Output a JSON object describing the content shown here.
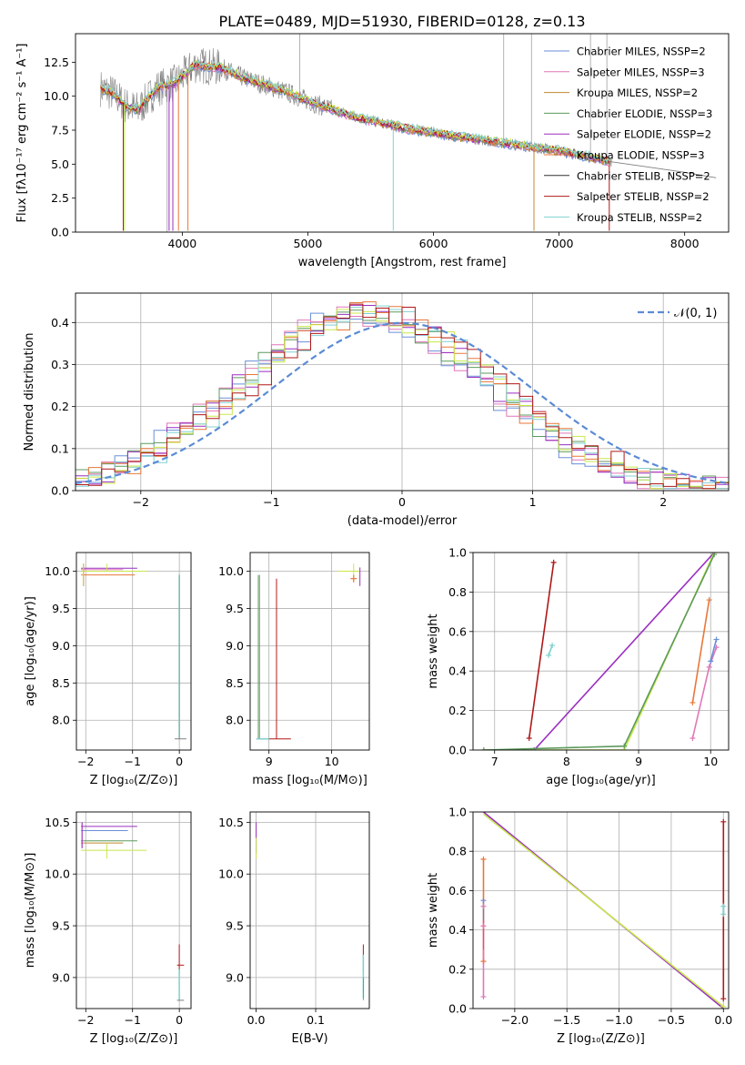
{
  "figure_title": "PLATE=0489, MJD=51930, FIBERID=0128, z=0.13",
  "colors": {
    "c0": "#6a8fd8",
    "c1": "#e077b8",
    "c2": "#c08a2e",
    "c3": "#5c9a5c",
    "c4": "#9a2fc0",
    "c5": "#e8783a",
    "c6": "#303030",
    "c7": "#b01818",
    "c8": "#80d0d0",
    "data": "#808080",
    "gauss": "#5b8bd5",
    "lime": "#c8e84a"
  },
  "chart_data": [
    {
      "id": "spectrum",
      "type": "line",
      "xlabel": "wavelength [Angstrom, rest frame]",
      "ylabel": "Flux [fλ10⁻¹⁷ erg cm⁻² s⁻¹ A⁻¹]",
      "xlim": [
        3150,
        8350
      ],
      "ylim": [
        0,
        14.6
      ],
      "xticks": [
        "4000",
        "5000",
        "6000",
        "7000",
        "8000"
      ],
      "yticks": [
        "0.0",
        "2.5",
        "5.0",
        "7.5",
        "10.0",
        "12.5"
      ],
      "grid": false,
      "legend_position": "upper right",
      "series": [
        {
          "name": "Chabrier MILES, N_SSP=2"
        },
        {
          "name": "Salpeter MILES, N_SSP=3"
        },
        {
          "name": "Kroupa MILES, N_SSP=2"
        },
        {
          "name": "Chabrier ELODIE, N_SSP=3"
        },
        {
          "name": "Salpeter ELODIE, N_SSP=2"
        },
        {
          "name": "Kroupa ELODIE, N_SSP=3"
        },
        {
          "name": "Chabrier STELIB, N_SSP=2"
        },
        {
          "name": "Salpeter STELIB, N_SSP=2"
        },
        {
          "name": "Kroupa STELIB, N_SSP=2"
        }
      ],
      "model_continuum": [
        [
          3350,
          10.6
        ],
        [
          3450,
          10.2
        ],
        [
          3550,
          9.3
        ],
        [
          3650,
          9.0
        ],
        [
          3800,
          10.6
        ],
        [
          3950,
          11.0
        ],
        [
          4100,
          12.3
        ],
        [
          4300,
          12.1
        ],
        [
          4500,
          11.3
        ],
        [
          4800,
          10.4
        ],
        [
          5100,
          9.3
        ],
        [
          5400,
          8.4
        ],
        [
          5800,
          7.6
        ],
        [
          6200,
          7.0
        ],
        [
          6600,
          6.5
        ],
        [
          7000,
          6.0
        ],
        [
          7400,
          5.2
        ]
      ],
      "extended_continuum": [
        [
          7400,
          5.2
        ],
        [
          7700,
          4.8
        ],
        [
          8000,
          4.4
        ],
        [
          8250,
          4.0
        ]
      ]
    },
    {
      "id": "residuals",
      "type": "step",
      "xlabel": "(data-model)/error",
      "ylabel": "Normed distribution",
      "xlim": [
        -2.5,
        2.5
      ],
      "ylim": [
        0,
        0.47
      ],
      "xticks": [
        "−2",
        "−1",
        "0",
        "1",
        "2"
      ],
      "yticks": [
        "0.0",
        "0.1",
        "0.2",
        "0.3",
        "0.4"
      ],
      "grid": true,
      "legend_position": "upper right",
      "gauss_label": "𝒩(0, 1)"
    },
    {
      "id": "age-vs-Z",
      "type": "errorbar",
      "xlabel": "Z [log₁₀(Z/Z⊙)]",
      "ylabel": "age  [log₁₀(age/yr)]",
      "xlim": [
        -2.2,
        0.25
      ],
      "ylim": [
        7.6,
        10.25
      ],
      "xticks": [
        "−2",
        "−1",
        "0"
      ],
      "yticks": [
        "8.0",
        "8.5",
        "9.0",
        "9.5",
        "10.0"
      ],
      "grid": true
    },
    {
      "id": "age-vs-mass",
      "type": "errorbar",
      "xlabel": "mass [log₁₀(M/M⊙)]",
      "xlim": [
        8.7,
        10.6
      ],
      "ylim": [
        7.6,
        10.25
      ],
      "xticks": [
        "9",
        "10"
      ],
      "yticks": [
        "8.0",
        "8.5",
        "9.0",
        "9.5",
        "10.0"
      ],
      "grid": true
    },
    {
      "id": "weight-vs-age",
      "type": "line",
      "xlabel": "age  [log₁₀(age/yr)]",
      "ylabel": "mass weight",
      "xlim": [
        6.7,
        10.25
      ],
      "ylim": [
        0,
        1.0
      ],
      "xticks": [
        "7",
        "8",
        "9",
        "10"
      ],
      "yticks": [
        "0.0",
        "0.2",
        "0.4",
        "0.6",
        "0.8",
        "1.0"
      ],
      "grid": true
    },
    {
      "id": "mass-vs-Z",
      "type": "errorbar",
      "xlabel": "Z [log₁₀(Z/Z⊙)]",
      "ylabel": "mass [log₁₀(M/M⊙)]",
      "xlim": [
        -2.2,
        0.25
      ],
      "ylim": [
        8.7,
        10.6
      ],
      "xticks": [
        "−2",
        "−1",
        "0"
      ],
      "yticks": [
        "9.0",
        "9.5",
        "10.0",
        "10.5"
      ],
      "grid": true
    },
    {
      "id": "mass-vs-EBV",
      "type": "errorbar",
      "xlabel": "E(B-V)",
      "xlim": [
        -0.01,
        0.19
      ],
      "ylim": [
        8.7,
        10.6
      ],
      "xticks": [
        "0.0",
        "0.1"
      ],
      "yticks": [
        "9.0",
        "9.5",
        "10.0",
        "10.5"
      ],
      "grid": true
    },
    {
      "id": "weight-vs-Z",
      "type": "line",
      "xlabel": "Z [log₁₀(Z/Z⊙)]",
      "ylabel": "mass weight",
      "xlim": [
        -2.4,
        0.05
      ],
      "ylim": [
        0,
        1.0
      ],
      "xticks": [
        "−2.0",
        "−1.5",
        "−1.0",
        "−0.5",
        "0.0"
      ],
      "yticks": [
        "0.0",
        "0.2",
        "0.4",
        "0.6",
        "0.8",
        "1.0"
      ],
      "grid": true
    }
  ]
}
